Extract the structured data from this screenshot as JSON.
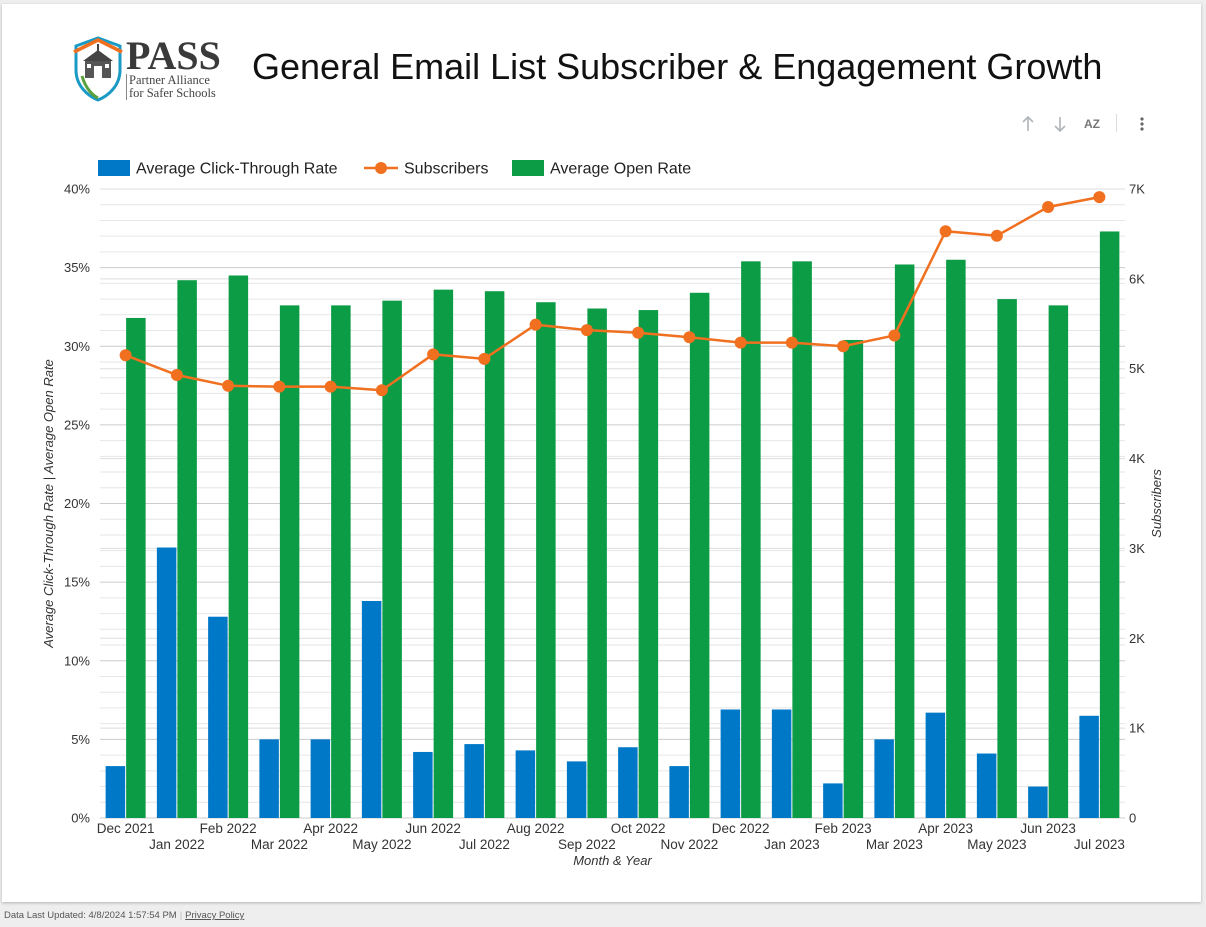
{
  "header": {
    "logo_name": "PASS",
    "logo_sub_line1": "Partner Alliance",
    "logo_sub_line2": "for Safer Schools",
    "title": "General Email List Subscriber & Engagement Growth"
  },
  "toolbar": {
    "sort_az_label": "AZ",
    "icons": [
      "arrow-up-icon",
      "arrow-down-icon",
      "sort-az-icon",
      "more-vert-icon"
    ]
  },
  "colors": {
    "ctr": "#0078c8",
    "subscribers": "#f07020",
    "open": "#0c9c46"
  },
  "chart_data": {
    "type": "bar",
    "title": "General Email List Subscriber & Engagement Growth",
    "xlabel": "Month & Year",
    "ylabel": "Average Click-Through Rate | Average Open Rate",
    "y2label": "Subscribers",
    "ylim": [
      0,
      40
    ],
    "y2lim": [
      0,
      7000
    ],
    "yticks": [
      "0%",
      "5%",
      "10%",
      "15%",
      "20%",
      "25%",
      "30%",
      "35%",
      "40%"
    ],
    "y2ticks": [
      "0",
      "1K",
      "2K",
      "3K",
      "4K",
      "5K",
      "6K",
      "7K"
    ],
    "grid": true,
    "legend_position": "top-left",
    "categories": [
      "Dec 2021",
      "Jan 2022",
      "Feb 2022",
      "Mar 2022",
      "Apr 2022",
      "May 2022",
      "Jun 2022",
      "Jul 2022",
      "Aug 2022",
      "Sep 2022",
      "Oct 2022",
      "Nov 2022",
      "Dec 2022",
      "Jan 2023",
      "Feb 2023",
      "Mar 2023",
      "Apr 2023",
      "May 2023",
      "Jun 2023",
      "Jul 2023"
    ],
    "series": [
      {
        "name": "Average Click-Through Rate",
        "type": "bar",
        "axis": "left",
        "values": [
          3.3,
          17.2,
          12.8,
          5.0,
          5.0,
          13.8,
          4.2,
          4.7,
          4.3,
          3.6,
          4.5,
          3.3,
          6.9,
          6.9,
          2.2,
          5.0,
          6.7,
          4.1,
          2.0,
          6.5
        ]
      },
      {
        "name": "Subscribers",
        "type": "line",
        "axis": "right",
        "values": [
          5150,
          4930,
          4810,
          4800,
          4800,
          4760,
          5160,
          5110,
          5490,
          5430,
          5400,
          5350,
          5290,
          5290,
          5250,
          5370,
          6530,
          6480,
          6800,
          6910
        ]
      },
      {
        "name": "Average Open Rate",
        "type": "bar",
        "axis": "left",
        "values": [
          31.8,
          34.2,
          34.5,
          32.6,
          32.6,
          32.9,
          33.6,
          33.5,
          32.8,
          32.4,
          32.3,
          33.4,
          35.4,
          35.4,
          30.4,
          35.2,
          35.5,
          33.0,
          32.6,
          37.3
        ]
      }
    ]
  },
  "footer": {
    "updated": "Data Last Updated: 4/8/2024 1:57:54 PM",
    "privacy": "Privacy Policy"
  }
}
